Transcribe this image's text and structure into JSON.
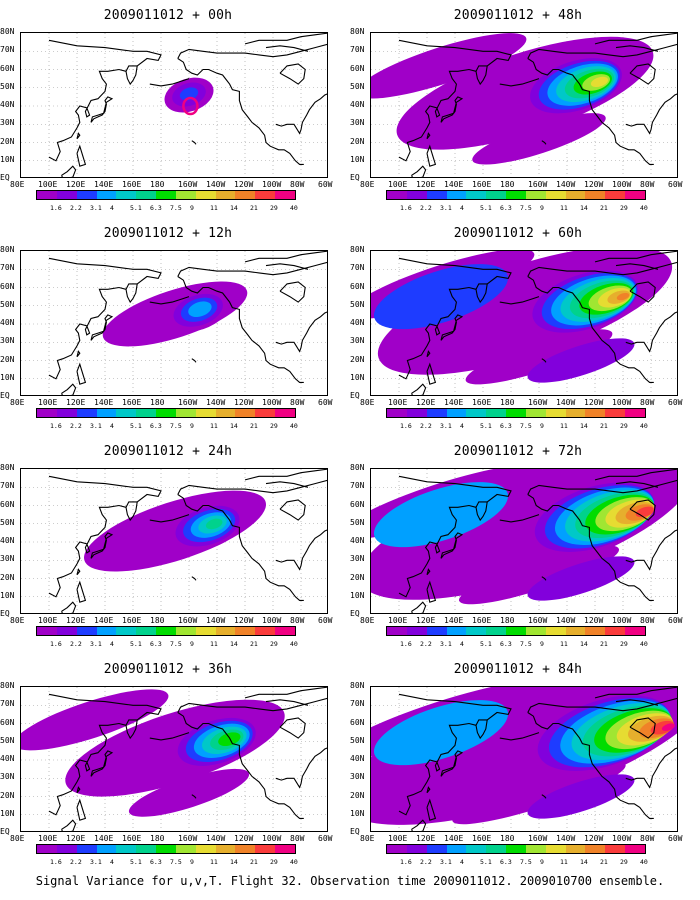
{
  "caption": "Signal Variance for u,v,T. Flight 32. Observation time 2009011012. 2009010700 ensemble.",
  "lat_labels": [
    "80N",
    "70N",
    "60N",
    "50N",
    "40N",
    "30N",
    "20N",
    "10N",
    "EQ"
  ],
  "lon_labels": [
    "80E",
    "100E",
    "120E",
    "140E",
    "160E",
    "180",
    "160W",
    "140W",
    "120W",
    "100W",
    "80W",
    "60W"
  ],
  "colorbar": {
    "levels": [
      "1.6",
      "2.2",
      "3.1",
      "4",
      "5.1",
      "6.3",
      "7.5",
      "9",
      "11",
      "14",
      "21",
      "29",
      "40"
    ],
    "colors": [
      "#a000c8",
      "#8200dc",
      "#1e3cff",
      "#00a0ff",
      "#00c8c8",
      "#00d28c",
      "#00dc00",
      "#a0e632",
      "#e6dc32",
      "#e6af2d",
      "#f08228",
      "#fa3c3c",
      "#f00082"
    ]
  },
  "panels": [
    {
      "title": "2009011012 + 00h",
      "stage": 0
    },
    {
      "title": "2009011012 + 12h",
      "stage": 1
    },
    {
      "title": "2009011012 + 24h",
      "stage": 2
    },
    {
      "title": "2009011012 + 36h",
      "stage": 3
    },
    {
      "title": "2009011012 + 48h",
      "stage": 4
    },
    {
      "title": "2009011012 + 60h",
      "stage": 5
    },
    {
      "title": "2009011012 + 72h",
      "stage": 6
    },
    {
      "title": "2009011012 + 84h",
      "stage": 7
    }
  ]
}
